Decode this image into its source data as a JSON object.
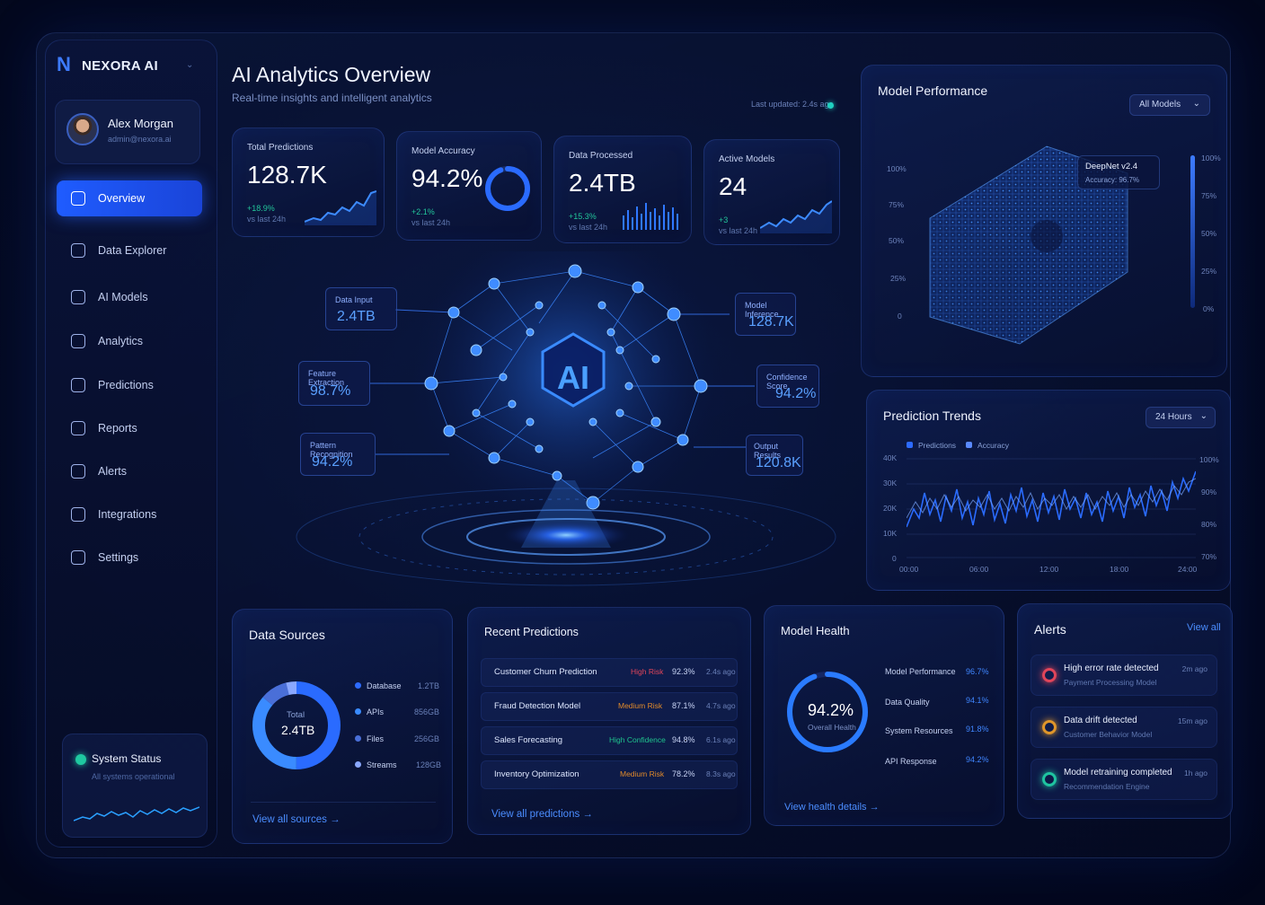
{
  "app": {
    "name": "NEXORA AI"
  },
  "user": {
    "name": "Alex Morgan",
    "email": "admin@nexora.ai"
  },
  "nav": [
    {
      "label": "Overview",
      "active": true
    },
    {
      "label": "Data Explorer"
    },
    {
      "label": "AI Models"
    },
    {
      "label": "Analytics"
    },
    {
      "label": "Predictions"
    },
    {
      "label": "Reports"
    },
    {
      "label": "Alerts"
    },
    {
      "label": "Integrations"
    },
    {
      "label": "Settings"
    }
  ],
  "system_status": {
    "title": "System Status",
    "subtitle": "All systems operational"
  },
  "header": {
    "title": "AI Analytics Overview",
    "subtitle": "Real-time insights and intelligent analytics",
    "updated": "Last updated: 2.4s ago"
  },
  "kpis": [
    {
      "label": "Total Predictions",
      "value": "128.7K",
      "delta": "+18.9%",
      "sub": "vs last 24h"
    },
    {
      "label": "Model Accuracy",
      "value": "94.2%",
      "delta": "+2.1%",
      "sub": "vs last 24h",
      "ring": 0.942
    },
    {
      "label": "Data Processed",
      "value": "2.4TB",
      "delta": "+15.3%",
      "sub": "vs last 24h"
    },
    {
      "label": "Active Models",
      "value": "24",
      "delta": "+3",
      "sub": "vs last 24h"
    }
  ],
  "flow": {
    "center": "AI",
    "left": [
      {
        "label": "Data Input",
        "value": "2.4TB"
      },
      {
        "label": "Feature Extraction",
        "value": "98.7%"
      },
      {
        "label": "Pattern Recognition",
        "value": "94.2%"
      }
    ],
    "right": [
      {
        "label": "Model Inference",
        "value": "128.7K"
      },
      {
        "label": "Confidence Score",
        "value": "94.2%"
      },
      {
        "label": "Output Results",
        "value": "120.8K"
      }
    ]
  },
  "model_performance": {
    "title": "Model Performance",
    "filter": "All Models",
    "tooltip": {
      "name": "DeepNet v2.4",
      "accuracy": "Accuracy: 96.7%"
    },
    "y_ticks": [
      "100%",
      "75%",
      "50%",
      "25%",
      "0"
    ],
    "scale_ticks": [
      "100%",
      "75%",
      "50%",
      "25%",
      "0%"
    ]
  },
  "prediction_trends": {
    "title": "Prediction Trends",
    "filter": "24 Hours",
    "legend": [
      "Predictions",
      "Accuracy"
    ],
    "y_left": [
      "40K",
      "30K",
      "20K",
      "10K",
      "0"
    ],
    "y_right": [
      "100%",
      "90%",
      "80%",
      "70%"
    ],
    "x": [
      "00:00",
      "06:00",
      "12:00",
      "18:00",
      "24:00"
    ]
  },
  "data_sources": {
    "title": "Data Sources",
    "center_label": "Total",
    "center_value": "2.4TB",
    "items": [
      {
        "name": "Database",
        "value": "1.2TB",
        "share": 0.5
      },
      {
        "name": "APIs",
        "value": "856GB",
        "share": 0.36
      },
      {
        "name": "Files",
        "value": "256GB",
        "share": 0.1
      },
      {
        "name": "Streams",
        "value": "128GB",
        "share": 0.04
      }
    ],
    "link": "View all sources →"
  },
  "recent_predictions": {
    "title": "Recent Predictions",
    "rows": [
      {
        "name": "Customer Churn Prediction",
        "risk": "High Risk",
        "risk_color": "#e0455a",
        "pct": "92.3%",
        "time": "2.4s ago"
      },
      {
        "name": "Fraud Detection Model",
        "risk": "Medium Risk",
        "risk_color": "#e08a2a",
        "pct": "87.1%",
        "time": "4.7s ago"
      },
      {
        "name": "Sales Forecasting",
        "risk": "High Confidence",
        "risk_color": "#1fc48e",
        "pct": "94.8%",
        "time": "6.1s ago"
      },
      {
        "name": "Inventory Optimization",
        "risk": "Medium Risk",
        "risk_color": "#e08a2a",
        "pct": "78.2%",
        "time": "8.3s ago"
      }
    ],
    "link": "View all predictions →"
  },
  "model_health": {
    "title": "Model Health",
    "value": "94.2%",
    "label": "Overall Health",
    "ring": 0.942,
    "rows": [
      {
        "name": "Model Performance",
        "value": "96.7%"
      },
      {
        "name": "Data Quality",
        "value": "94.1%"
      },
      {
        "name": "System Resources",
        "value": "91.8%"
      },
      {
        "name": "API Response",
        "value": "94.2%"
      }
    ],
    "link": "View health details →"
  },
  "alerts": {
    "title": "Alerts",
    "view_all": "View all",
    "items": [
      {
        "title": "High error rate detected",
        "sub": "Payment Processing Model",
        "time": "2m ago",
        "color": "#e0455a"
      },
      {
        "title": "Data drift detected",
        "sub": "Customer Behavior Model",
        "time": "15m ago",
        "color": "#e0962a"
      },
      {
        "title": "Model retraining completed",
        "sub": "Recommendation Engine",
        "time": "1h ago",
        "color": "#1fc4a0"
      }
    ]
  }
}
